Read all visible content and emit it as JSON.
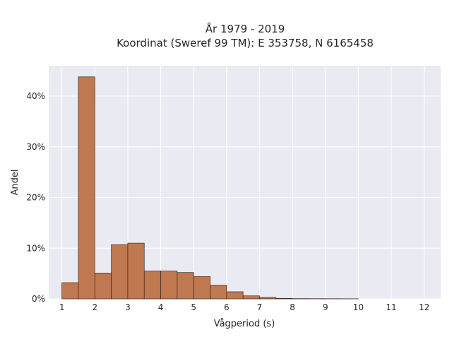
{
  "chart_data": {
    "type": "bar",
    "title_line1": "År 1979 - 2019",
    "title_line2": "Koordinat (Sweref 99 TM): E 353758, N 6165458",
    "xlabel": "Vågperiod (s)",
    "ylabel": "Andel",
    "xlim": [
      0.6,
      12.5
    ],
    "ylim": [
      0,
      0.46
    ],
    "x_ticks": [
      1,
      2,
      3,
      4,
      5,
      6,
      7,
      8,
      9,
      10,
      11,
      12
    ],
    "x_tick_labels": [
      "1",
      "2",
      "3",
      "4",
      "5",
      "6",
      "7",
      "8",
      "9",
      "10",
      "11",
      "12"
    ],
    "y_ticks": [
      0,
      0.1,
      0.2,
      0.3,
      0.4
    ],
    "y_tick_labels": [
      "0%",
      "10%",
      "20%",
      "30%",
      "40%"
    ],
    "bin_width": 0.5,
    "bins": [
      {
        "start": 1.0,
        "value": 0.032
      },
      {
        "start": 1.5,
        "value": 0.438
      },
      {
        "start": 2.0,
        "value": 0.051
      },
      {
        "start": 2.5,
        "value": 0.107
      },
      {
        "start": 3.0,
        "value": 0.11
      },
      {
        "start": 3.5,
        "value": 0.055
      },
      {
        "start": 4.0,
        "value": 0.055
      },
      {
        "start": 4.5,
        "value": 0.052
      },
      {
        "start": 5.0,
        "value": 0.044
      },
      {
        "start": 5.5,
        "value": 0.027
      },
      {
        "start": 6.0,
        "value": 0.014
      },
      {
        "start": 6.5,
        "value": 0.006
      },
      {
        "start": 7.0,
        "value": 0.003
      },
      {
        "start": 7.5,
        "value": 0.001
      },
      {
        "start": 8.0,
        "value": 0.0005
      },
      {
        "start": 8.5,
        "value": 0.0004
      },
      {
        "start": 9.0,
        "value": 0.0003
      },
      {
        "start": 9.5,
        "value": 0.0002
      }
    ],
    "bar_color": "#c07850",
    "bar_edge_color": "#3a2a20",
    "plot_background": "#eaeaf2",
    "grid": true,
    "grid_color": "#ffffff"
  }
}
